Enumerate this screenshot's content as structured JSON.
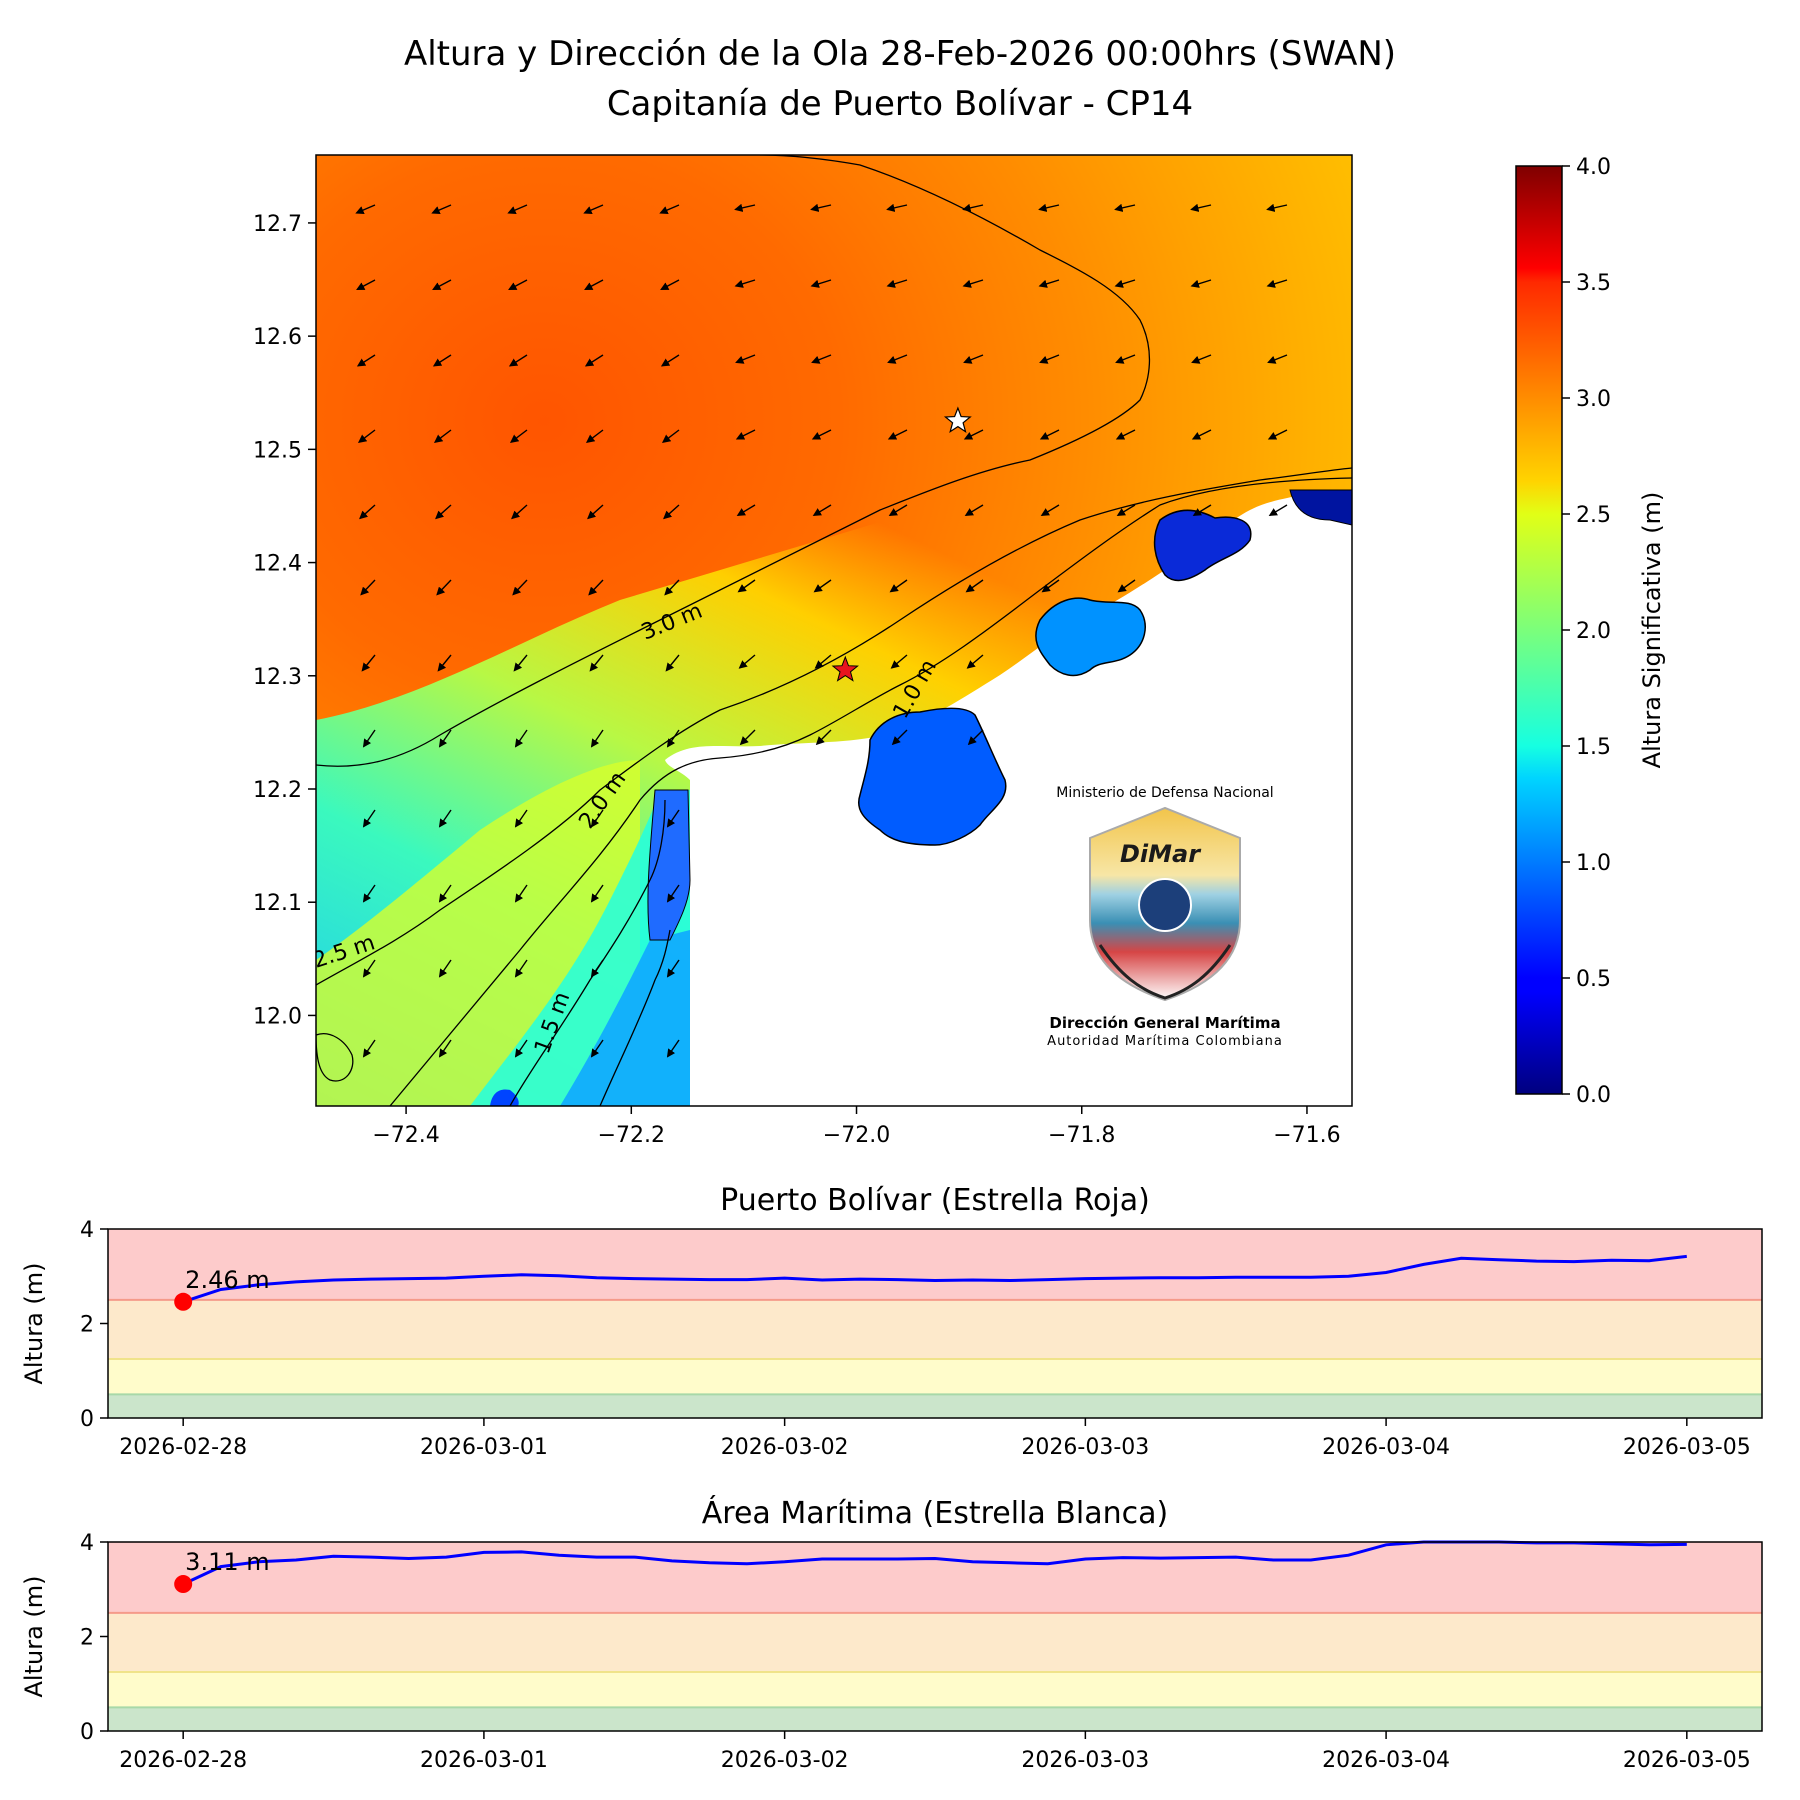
{
  "header": {
    "title_line1": "Altura y Dirección de la Ola 28-Feb-2026 00:00hrs (SWAN)",
    "title_line2": "Capitanía de Puerto Bolívar - CP14"
  },
  "map": {
    "x_ticks": [
      "−72.4",
      "−72.2",
      "−72.0",
      "−71.8",
      "−71.6"
    ],
    "x_tick_values": [
      -72.4,
      -72.2,
      -72.0,
      -71.8,
      -71.6
    ],
    "y_ticks": [
      "12.7",
      "12.6",
      "12.5",
      "12.4",
      "12.3",
      "12.2",
      "12.1",
      "12.0"
    ],
    "y_tick_values": [
      12.7,
      12.6,
      12.5,
      12.4,
      12.3,
      12.2,
      12.1,
      12.0
    ],
    "xlim": [
      -72.48,
      -71.56
    ],
    "ylim": [
      11.92,
      12.76
    ],
    "contour_labels": [
      "3.0 m",
      "2.0 m",
      "2.5 m",
      "1.5 m",
      "1.0 m"
    ],
    "red_star": {
      "lon": -72.01,
      "lat": 12.305
    },
    "white_star": {
      "lon": -71.91,
      "lat": 12.525
    },
    "wave_direction": "from NE (arrows point SW)"
  },
  "colorbar": {
    "label": "Altura Significativa (m)",
    "ticks": [
      "0.0",
      "0.5",
      "1.0",
      "1.5",
      "2.0",
      "2.5",
      "3.0",
      "3.5",
      "4.0"
    ],
    "range": [
      0,
      4
    ],
    "colormap": "jet"
  },
  "logo": {
    "top_text": "Ministerio de Defensa Nacional",
    "brand": "DiMar",
    "name": "Dirección General Marítima",
    "subtitle": "Autoridad Marítima Colombiana"
  },
  "chart_data": [
    {
      "type": "line",
      "title": "Puerto Bolívar (Estrella Roja)",
      "ylabel": "Altura (m)",
      "ylim": [
        0,
        4
      ],
      "y_ticks": [
        "0",
        "2",
        "4"
      ],
      "x_ticks": [
        "2026-02-28",
        "2026-03-01",
        "2026-03-02",
        "2026-03-03",
        "2026-03-04",
        "2026-03-05"
      ],
      "x_days": [
        0,
        0.125,
        0.25,
        0.375,
        0.5,
        0.625,
        0.75,
        0.875,
        1,
        1.125,
        1.25,
        1.375,
        1.5,
        1.625,
        1.75,
        1.875,
        2,
        2.125,
        2.25,
        2.375,
        2.5,
        2.625,
        2.75,
        2.875,
        3,
        3.125,
        3.25,
        3.375,
        3.5,
        3.625,
        3.75,
        3.875,
        4,
        4.125,
        4.25,
        4.375,
        4.5,
        4.625,
        4.75,
        4.875,
        5
      ],
      "values": [
        2.46,
        2.72,
        2.82,
        2.88,
        2.92,
        2.94,
        2.95,
        2.96,
        3.0,
        3.03,
        3.01,
        2.97,
        2.95,
        2.94,
        2.93,
        2.93,
        2.96,
        2.92,
        2.94,
        2.93,
        2.91,
        2.92,
        2.91,
        2.93,
        2.95,
        2.96,
        2.97,
        2.97,
        2.98,
        2.98,
        2.98,
        3.0,
        3.08,
        3.25,
        3.38,
        3.35,
        3.32,
        3.31,
        3.34,
        3.33,
        3.42
      ],
      "current_label": "2.46 m",
      "current_value": 2.46,
      "bands": [
        {
          "from": 0,
          "to": 0.5,
          "color": "#cbe5cb"
        },
        {
          "from": 0.5,
          "to": 1.25,
          "color": "#fffccb"
        },
        {
          "from": 1.25,
          "to": 2.5,
          "color": "#fde9cb"
        },
        {
          "from": 2.5,
          "to": 4,
          "color": "#fdcbcb"
        }
      ],
      "line_color": "#0000ff",
      "marker_color": "#ff0000"
    },
    {
      "type": "line",
      "title": "Área Marítima (Estrella Blanca)",
      "ylabel": "Altura (m)",
      "ylim": [
        0,
        4
      ],
      "y_ticks": [
        "0",
        "2",
        "4"
      ],
      "x_ticks": [
        "2026-02-28",
        "2026-03-01",
        "2026-03-02",
        "2026-03-03",
        "2026-03-04",
        "2026-03-05"
      ],
      "x_days": [
        0,
        0.125,
        0.25,
        0.375,
        0.5,
        0.625,
        0.75,
        0.875,
        1,
        1.125,
        1.25,
        1.375,
        1.5,
        1.625,
        1.75,
        1.875,
        2,
        2.125,
        2.25,
        2.375,
        2.5,
        2.625,
        2.75,
        2.875,
        3,
        3.125,
        3.25,
        3.375,
        3.5,
        3.625,
        3.75,
        3.875,
        4,
        4.125,
        4.25,
        4.375,
        4.5,
        4.625,
        4.75,
        4.875,
        5
      ],
      "values": [
        3.11,
        3.48,
        3.58,
        3.62,
        3.7,
        3.68,
        3.65,
        3.68,
        3.78,
        3.79,
        3.72,
        3.68,
        3.68,
        3.6,
        3.56,
        3.54,
        3.58,
        3.64,
        3.64,
        3.64,
        3.65,
        3.58,
        3.56,
        3.54,
        3.64,
        3.67,
        3.66,
        3.67,
        3.68,
        3.62,
        3.62,
        3.72,
        3.94,
        4.02,
        4.02,
        4.0,
        3.98,
        3.98,
        3.96,
        3.94,
        3.95
      ],
      "current_label": "3.11 m",
      "current_value": 3.11,
      "bands": [
        {
          "from": 0,
          "to": 0.5,
          "color": "#cbe5cb"
        },
        {
          "from": 0.5,
          "to": 1.25,
          "color": "#fffccb"
        },
        {
          "from": 1.25,
          "to": 2.5,
          "color": "#fde9cb"
        },
        {
          "from": 2.5,
          "to": 4,
          "color": "#fdcbcb"
        }
      ],
      "line_color": "#0000ff",
      "marker_color": "#ff0000"
    }
  ]
}
